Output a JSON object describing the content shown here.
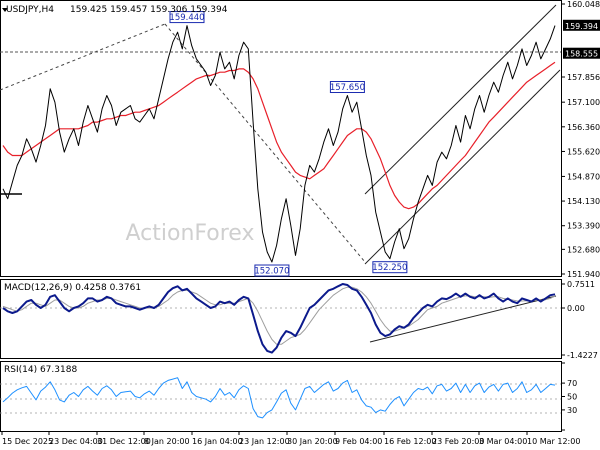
{
  "header": {
    "symbol_label": "USDJPY,H4",
    "ohlc_label": "159.425 159.457 159.306 159.394"
  },
  "watermark": "ActionForex",
  "colors": {
    "price": "#000000",
    "ma_red": "#e8202a",
    "macd": "#0c1a8c",
    "signal": "#9e9e9e",
    "rsi": "#1e90ff",
    "callout_border": "#1a2bb0",
    "trendline": "#222222"
  },
  "chart_data": [
    {
      "type": "line",
      "panel": "price",
      "title": "USDJPY,H4",
      "ylim": [
        151.5,
        160.048
      ],
      "y_ticks": [
        "160.048",
        "159.394",
        "158.555",
        "157.856",
        "157.100",
        "156.360",
        "155.620",
        "154.870",
        "154.130",
        "153.390",
        "152.680",
        "151.940"
      ],
      "x_ticks": [
        "15 Dec 2025",
        "23 Dec 04:00",
        "31 Dec 12:00",
        "8 Jan 20:00",
        "16 Jan 04:00",
        "23 Jan 12:00",
        "30 Jan 20:00",
        "9 Feb 04:00",
        "16 Feb 12:00",
        "23 Feb 20:00",
        "3 Mar 04:00",
        "10 Mar 12:00"
      ],
      "series": [
        {
          "values": [
            154.5,
            154.2,
            154.7,
            155.2,
            155.5,
            156.0,
            155.7,
            155.3,
            155.8,
            156.4,
            157.5,
            157.1,
            156.2,
            155.6,
            156.0,
            156.3,
            155.8,
            156.5,
            157.0,
            156.6,
            156.2,
            156.9,
            157.3,
            157.0,
            156.4,
            156.8,
            156.9,
            157.0,
            156.6,
            156.5,
            156.7,
            156.9,
            156.6,
            157.2,
            157.8,
            158.4,
            158.9,
            159.2,
            158.7,
            159.4,
            158.8,
            158.4,
            158.2,
            158.0,
            157.6,
            157.9,
            158.6,
            158.1,
            158.3,
            157.8,
            158.5,
            158.9,
            158.7,
            156.5,
            154.5,
            153.2,
            152.6,
            152.3,
            152.8,
            153.6,
            154.2,
            153.4,
            152.5,
            153.3,
            154.6,
            155.2,
            155.0,
            155.4,
            155.9,
            156.3,
            155.8,
            156.2,
            156.9,
            157.3,
            156.8,
            157.1,
            156.3,
            155.5,
            154.9,
            153.8,
            153.2,
            152.6,
            152.4,
            152.9,
            153.3,
            152.7,
            153.0,
            153.6,
            154.1,
            154.5,
            154.9,
            154.6,
            155.3,
            155.6,
            155.4,
            155.8,
            156.4,
            155.9,
            156.7,
            156.3,
            156.9,
            157.3,
            156.8,
            157.3,
            157.7,
            157.4,
            157.9,
            158.3,
            157.8,
            158.2,
            158.7,
            158.2,
            158.5,
            158.9,
            158.4,
            158.7,
            159.0,
            159.4
          ],
          "color": "#000000"
        },
        {
          "values": [
            155.8,
            155.6,
            155.5,
            155.5,
            155.5,
            155.6,
            155.7,
            155.8,
            155.9,
            156.0,
            156.1,
            156.2,
            156.3,
            156.3,
            156.3,
            156.3,
            156.3,
            156.35,
            156.4,
            156.5,
            156.5,
            156.55,
            156.6,
            156.6,
            156.65,
            156.7,
            156.7,
            156.75,
            156.8,
            156.8,
            156.85,
            156.9,
            156.95,
            157.0,
            157.1,
            157.2,
            157.3,
            157.4,
            157.5,
            157.6,
            157.7,
            157.8,
            157.85,
            157.9,
            157.9,
            157.95,
            158.0,
            158.0,
            158.05,
            158.05,
            158.1,
            158.1,
            158.0,
            157.8,
            157.5,
            157.1,
            156.7,
            156.3,
            155.9,
            155.6,
            155.4,
            155.2,
            155.0,
            154.9,
            154.85,
            154.8,
            154.9,
            155.0,
            155.1,
            155.3,
            155.5,
            155.7,
            155.9,
            156.1,
            156.2,
            156.3,
            156.3,
            156.2,
            156.0,
            155.7,
            155.4,
            155.0,
            154.6,
            154.3,
            154.1,
            153.95,
            153.9,
            153.95,
            154.05,
            154.2,
            154.35,
            154.5,
            154.6,
            154.75,
            154.9,
            155.05,
            155.2,
            155.35,
            155.5,
            155.7,
            155.9,
            156.1,
            156.3,
            156.5,
            156.65,
            156.8,
            156.95,
            157.1,
            157.25,
            157.4,
            157.55,
            157.7,
            157.8,
            157.9,
            158.0,
            158.1,
            158.2,
            158.3
          ],
          "color": "#e8202a"
        }
      ],
      "callouts": [
        "159.440",
        "157.650",
        "152.070",
        "152.250"
      ],
      "hline_label": "158.555",
      "last_price_label": "159.394",
      "watermark": "ActionForex"
    },
    {
      "type": "line",
      "panel": "macd",
      "title": "MACD(12,26,9) 0.4258 0.3761",
      "ylim": [
        -1.5,
        0.85
      ],
      "y_ticks": [
        "0.7511",
        "0.00",
        "-1.4227"
      ],
      "series": [
        {
          "name": "MACD",
          "values": [
            0.0,
            -0.1,
            -0.15,
            -0.1,
            0.05,
            0.2,
            0.25,
            0.1,
            0.0,
            0.1,
            0.35,
            0.4,
            0.2,
            0.0,
            -0.1,
            0.0,
            0.05,
            0.15,
            0.3,
            0.3,
            0.2,
            0.25,
            0.35,
            0.3,
            0.15,
            0.1,
            0.05,
            0.05,
            0.0,
            -0.05,
            0.0,
            0.05,
            0.0,
            0.1,
            0.3,
            0.5,
            0.62,
            0.68,
            0.55,
            0.6,
            0.45,
            0.3,
            0.2,
            0.1,
            0.0,
            0.05,
            0.2,
            0.15,
            0.2,
            0.1,
            0.25,
            0.35,
            0.3,
            -0.2,
            -0.7,
            -1.1,
            -1.3,
            -1.35,
            -1.2,
            -0.9,
            -0.7,
            -0.75,
            -0.85,
            -0.6,
            -0.3,
            0.0,
            0.1,
            0.25,
            0.4,
            0.55,
            0.6,
            0.68,
            0.75,
            0.72,
            0.6,
            0.55,
            0.35,
            0.1,
            -0.15,
            -0.5,
            -0.75,
            -0.85,
            -0.8,
            -0.65,
            -0.55,
            -0.6,
            -0.5,
            -0.3,
            -0.15,
            0.0,
            0.1,
            0.05,
            0.2,
            0.3,
            0.28,
            0.35,
            0.45,
            0.35,
            0.45,
            0.35,
            0.3,
            0.4,
            0.3,
            0.35,
            0.45,
            0.3,
            0.2,
            0.3,
            0.2,
            0.15,
            0.3,
            0.25,
            0.2,
            0.3,
            0.2,
            0.3,
            0.4,
            0.43
          ],
          "color": "#0c1a8c"
        },
        {
          "name": "Signal",
          "values": [
            0.05,
            0.0,
            -0.05,
            -0.1,
            -0.05,
            0.05,
            0.15,
            0.15,
            0.1,
            0.05,
            0.15,
            0.25,
            0.25,
            0.15,
            0.05,
            0.0,
            0.0,
            0.05,
            0.15,
            0.2,
            0.25,
            0.25,
            0.3,
            0.3,
            0.25,
            0.2,
            0.15,
            0.1,
            0.05,
            0.0,
            0.0,
            0.0,
            0.0,
            0.05,
            0.15,
            0.25,
            0.4,
            0.5,
            0.55,
            0.55,
            0.5,
            0.45,
            0.35,
            0.25,
            0.15,
            0.1,
            0.1,
            0.15,
            0.15,
            0.15,
            0.2,
            0.25,
            0.3,
            0.15,
            -0.1,
            -0.4,
            -0.7,
            -0.95,
            -1.1,
            -1.1,
            -1.0,
            -0.9,
            -0.85,
            -0.8,
            -0.65,
            -0.45,
            -0.25,
            -0.05,
            0.1,
            0.25,
            0.4,
            0.5,
            0.6,
            0.65,
            0.65,
            0.6,
            0.5,
            0.35,
            0.15,
            -0.1,
            -0.35,
            -0.55,
            -0.7,
            -0.7,
            -0.65,
            -0.6,
            -0.55,
            -0.45,
            -0.35,
            -0.2,
            -0.05,
            0.0,
            0.05,
            0.15,
            0.2,
            0.25,
            0.3,
            0.35,
            0.38,
            0.38,
            0.35,
            0.35,
            0.35,
            0.33,
            0.35,
            0.35,
            0.3,
            0.28,
            0.25,
            0.22,
            0.22,
            0.23,
            0.22,
            0.24,
            0.24,
            0.26,
            0.3,
            0.376
          ],
          "color": "#9e9e9e"
        }
      ]
    },
    {
      "type": "line",
      "panel": "rsi",
      "title": "RSI(14) 67.3188",
      "ylim": [
        0,
        100
      ],
      "y_ticks": [
        "100",
        "70",
        "50",
        "30",
        "0"
      ],
      "series": [
        {
          "name": "RSI(14)",
          "values": [
            42,
            48,
            55,
            60,
            63,
            65,
            55,
            45,
            58,
            64,
            72,
            60,
            45,
            42,
            52,
            56,
            50,
            60,
            65,
            58,
            52,
            62,
            66,
            60,
            50,
            56,
            57,
            58,
            50,
            48,
            54,
            58,
            52,
            62,
            70,
            74,
            76,
            78,
            62,
            72,
            56,
            50,
            48,
            46,
            42,
            50,
            62,
            52,
            56,
            48,
            60,
            66,
            62,
            32,
            20,
            18,
            26,
            30,
            42,
            55,
            60,
            40,
            30,
            46,
            62,
            65,
            56,
            62,
            68,
            72,
            58,
            62,
            70,
            74,
            56,
            60,
            45,
            36,
            34,
            26,
            30,
            28,
            38,
            46,
            50,
            36,
            46,
            56,
            62,
            60,
            64,
            54,
            66,
            68,
            58,
            62,
            70,
            56,
            68,
            56,
            66,
            70,
            56,
            64,
            68,
            58,
            68,
            70,
            56,
            62,
            72,
            56,
            60,
            68,
            56,
            62,
            68,
            67
          ]
        }
      ]
    }
  ]
}
